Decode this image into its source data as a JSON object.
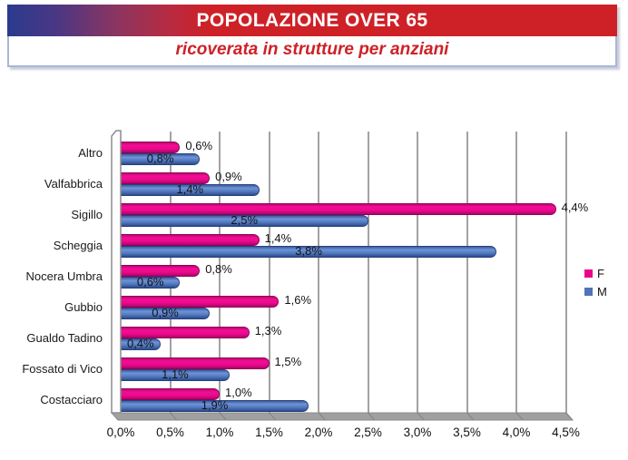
{
  "header": {
    "title": "POPOLAZIONE OVER 65",
    "subtitle": "ricoverata in strutture per anziani",
    "banner_red": "#ce2127",
    "banner_blue_left": "#2b3a8e",
    "subtitle_color": "#ce2127",
    "border_color": "#a9b6d9"
  },
  "chart_data": {
    "type": "bar",
    "orientation": "horizontal",
    "title": "",
    "xlabel": "",
    "ylabel": "",
    "xlim": [
      0,
      4.5
    ],
    "grid": true,
    "legend_position": "right",
    "categories": [
      "Altro",
      "Valfabbrica",
      "Sigillo",
      "Scheggia",
      "Nocera Umbra",
      "Gubbio",
      "Gualdo Tadino",
      "Fossato di Vico",
      "Costacciaro"
    ],
    "series": [
      {
        "name": "F",
        "color": "#e8058a",
        "values": [
          0.6,
          0.9,
          4.4,
          1.4,
          0.8,
          1.6,
          1.3,
          1.5,
          1.0
        ]
      },
      {
        "name": "M",
        "color": "#4f74b8",
        "values": [
          0.8,
          1.4,
          2.5,
          3.8,
          0.6,
          0.9,
          0.4,
          1.1,
          1.9
        ]
      }
    ],
    "value_labels": {
      "F": [
        "0,6%",
        "0,9%",
        "4,4%",
        "1,4%",
        "0,8%",
        "1,6%",
        "1,3%",
        "1,5%",
        "1,0%"
      ],
      "M": [
        "0,8%",
        "1,4%",
        "2,5%",
        "3,8%",
        "0,6%",
        "0,9%",
        "0,4%",
        "1,1%",
        "1,9%"
      ]
    },
    "x_ticks": [
      "0,0%",
      "0,5%",
      "1,0%",
      "1,5%",
      "2,0%",
      "2,5%",
      "3,0%",
      "3,5%",
      "4,0%",
      "4,5%"
    ]
  }
}
